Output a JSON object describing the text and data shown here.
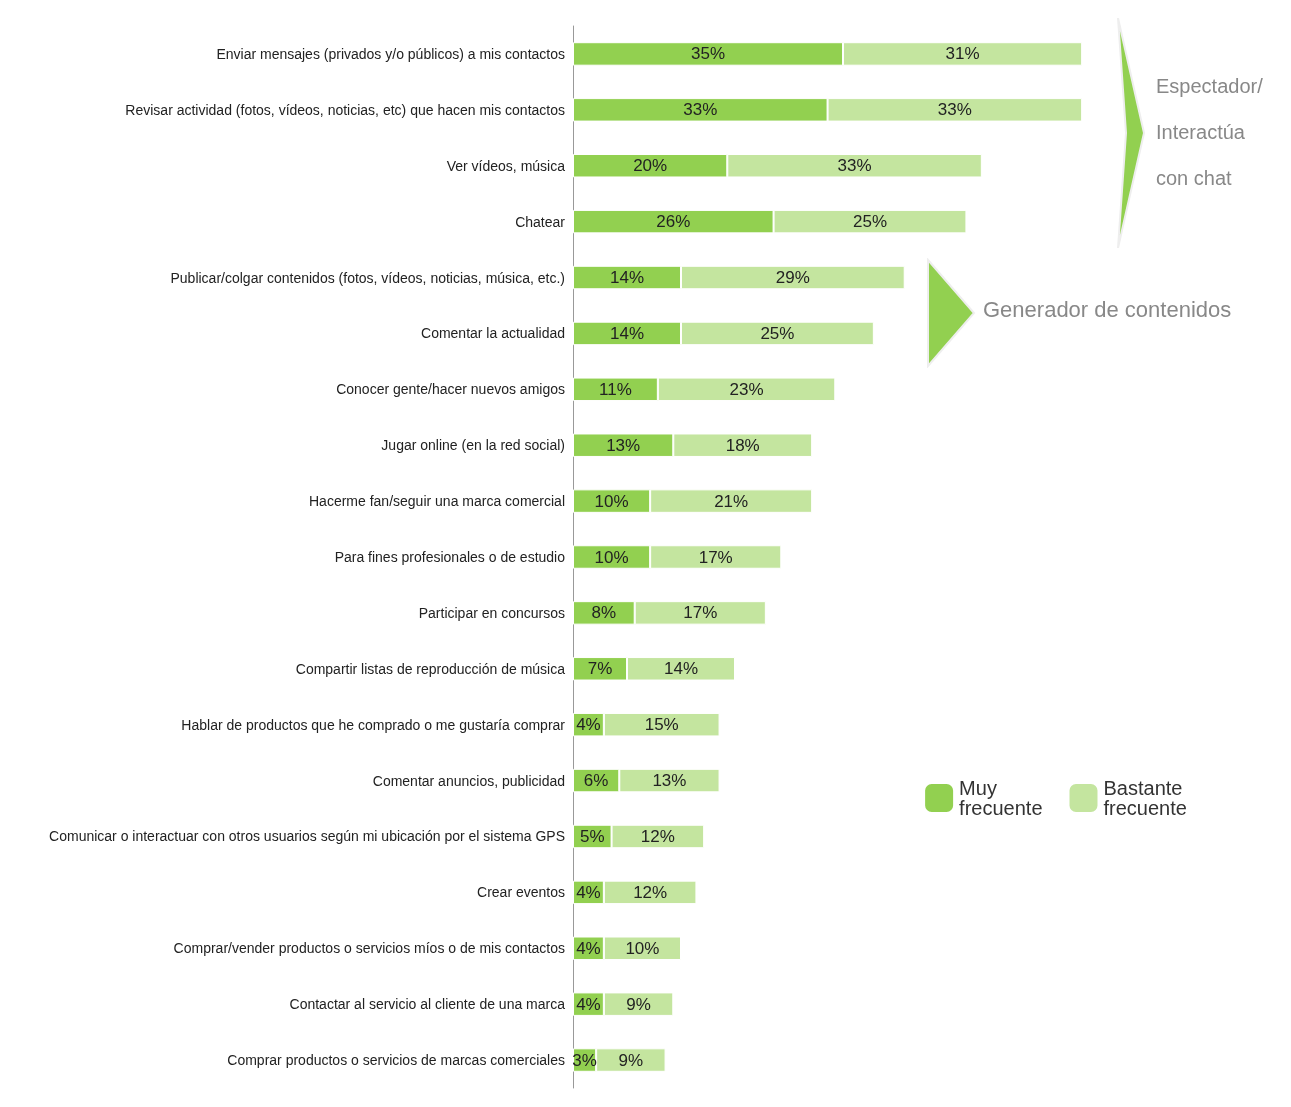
{
  "chart_data": {
    "type": "bar",
    "orientation": "horizontal",
    "stacked": true,
    "grid": false,
    "legend": "right",
    "categories": [
      "Enviar mensajes (privados y/o públicos) a mis contactos",
      "Revisar actividad (fotos, vídeos, noticias, etc) que hacen mis contactos",
      "Ver vídeos, música",
      "Chatear",
      "Publicar/colgar contenidos (fotos, vídeos, noticias, música, etc.)",
      "Comentar la actualidad",
      "Conocer gente/hacer nuevos amigos",
      "Jugar online (en la red social)",
      "Hacerme fan/seguir una marca comercial",
      "Para fines profesionales o de estudio",
      "Participar en concursos",
      "Compartir listas de reproducción de música",
      "Hablar de productos que he comprado o me gustaría comprar",
      "Comentar anuncios, publicidad",
      "Comunicar o interactuar con otros usuarios según mi ubicación por el sistema GPS",
      "Crear eventos",
      "Comprar/vender productos o servicios míos o de mis contactos",
      "Contactar al servicio al cliente de una marca",
      "Comprar productos o servicios de marcas comerciales"
    ],
    "series": [
      {
        "name": "Muy frecuente",
        "color": "#92d050",
        "values": [
          35,
          33,
          20,
          26,
          14,
          14,
          11,
          13,
          10,
          10,
          8,
          7,
          4,
          6,
          5,
          4,
          4,
          4,
          3
        ],
        "value_labels": [
          "35%",
          "33%",
          "20%",
          "26%",
          "14%",
          "14%",
          "11%",
          "13%",
          "10%",
          "10%",
          "8%",
          "7%",
          "4%",
          "6%",
          "5%",
          "4%",
          "4%",
          "4%",
          "3%"
        ]
      },
      {
        "name": "Bastante frecuente",
        "color": "#c4e59f",
        "values": [
          31,
          33,
          33,
          25,
          29,
          25,
          23,
          18,
          21,
          17,
          17,
          14,
          15,
          13,
          12,
          12,
          10,
          9,
          9
        ],
        "value_labels": [
          "31%",
          "33%",
          "33%",
          "25%",
          "29%",
          "25%",
          "23%",
          "18%",
          "21%",
          "17%",
          "17%",
          "14%",
          "15%",
          "13%",
          "12%",
          "12%",
          "10%",
          "9%",
          "9%"
        ]
      }
    ],
    "annotations": [
      "Espectador/ Interactúa con chat",
      "Generador de contenidos"
    ]
  }
}
